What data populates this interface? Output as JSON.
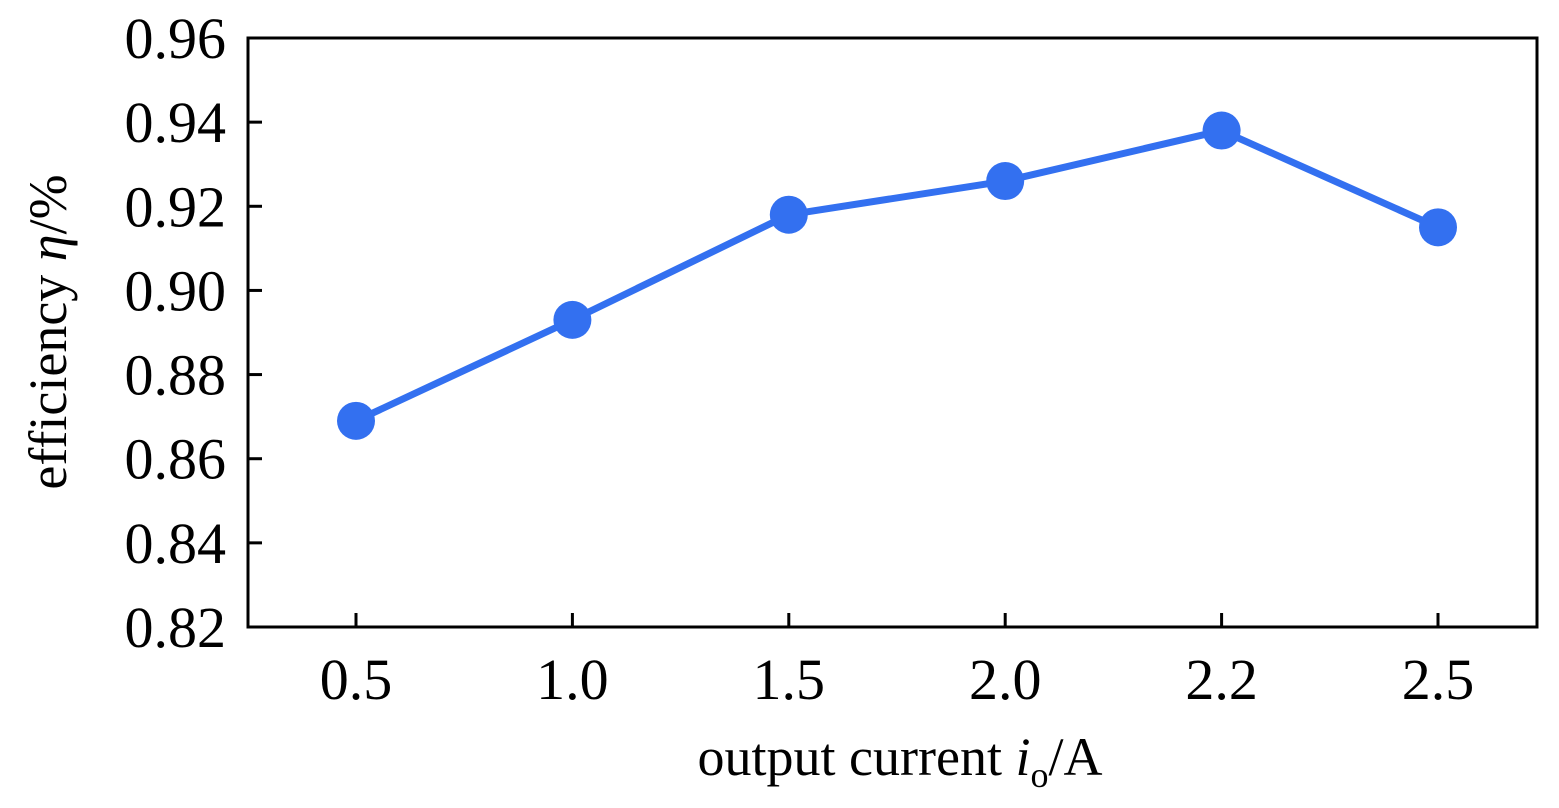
{
  "chart_data": {
    "type": "line",
    "title": "",
    "xlabel": {
      "prefix": "output current ",
      "symbol": "i",
      "subscript": "o",
      "unit": "/A"
    },
    "ylabel": {
      "prefix": "efficiency ",
      "symbol": "η",
      "unit": "/%"
    },
    "categories": [
      "0.5",
      "1.0",
      "1.5",
      "2.0",
      "2.2",
      "2.5"
    ],
    "yticks": [
      "0.82",
      "0.84",
      "0.86",
      "0.88",
      "0.90",
      "0.92",
      "0.94",
      "0.96"
    ],
    "ylim": [
      0.82,
      0.96
    ],
    "series": [
      {
        "values": [
          0.869,
          0.893,
          0.918,
          0.926,
          0.938,
          0.915
        ],
        "color": "#3370f0"
      }
    ],
    "grid": false,
    "legend": "none"
  }
}
